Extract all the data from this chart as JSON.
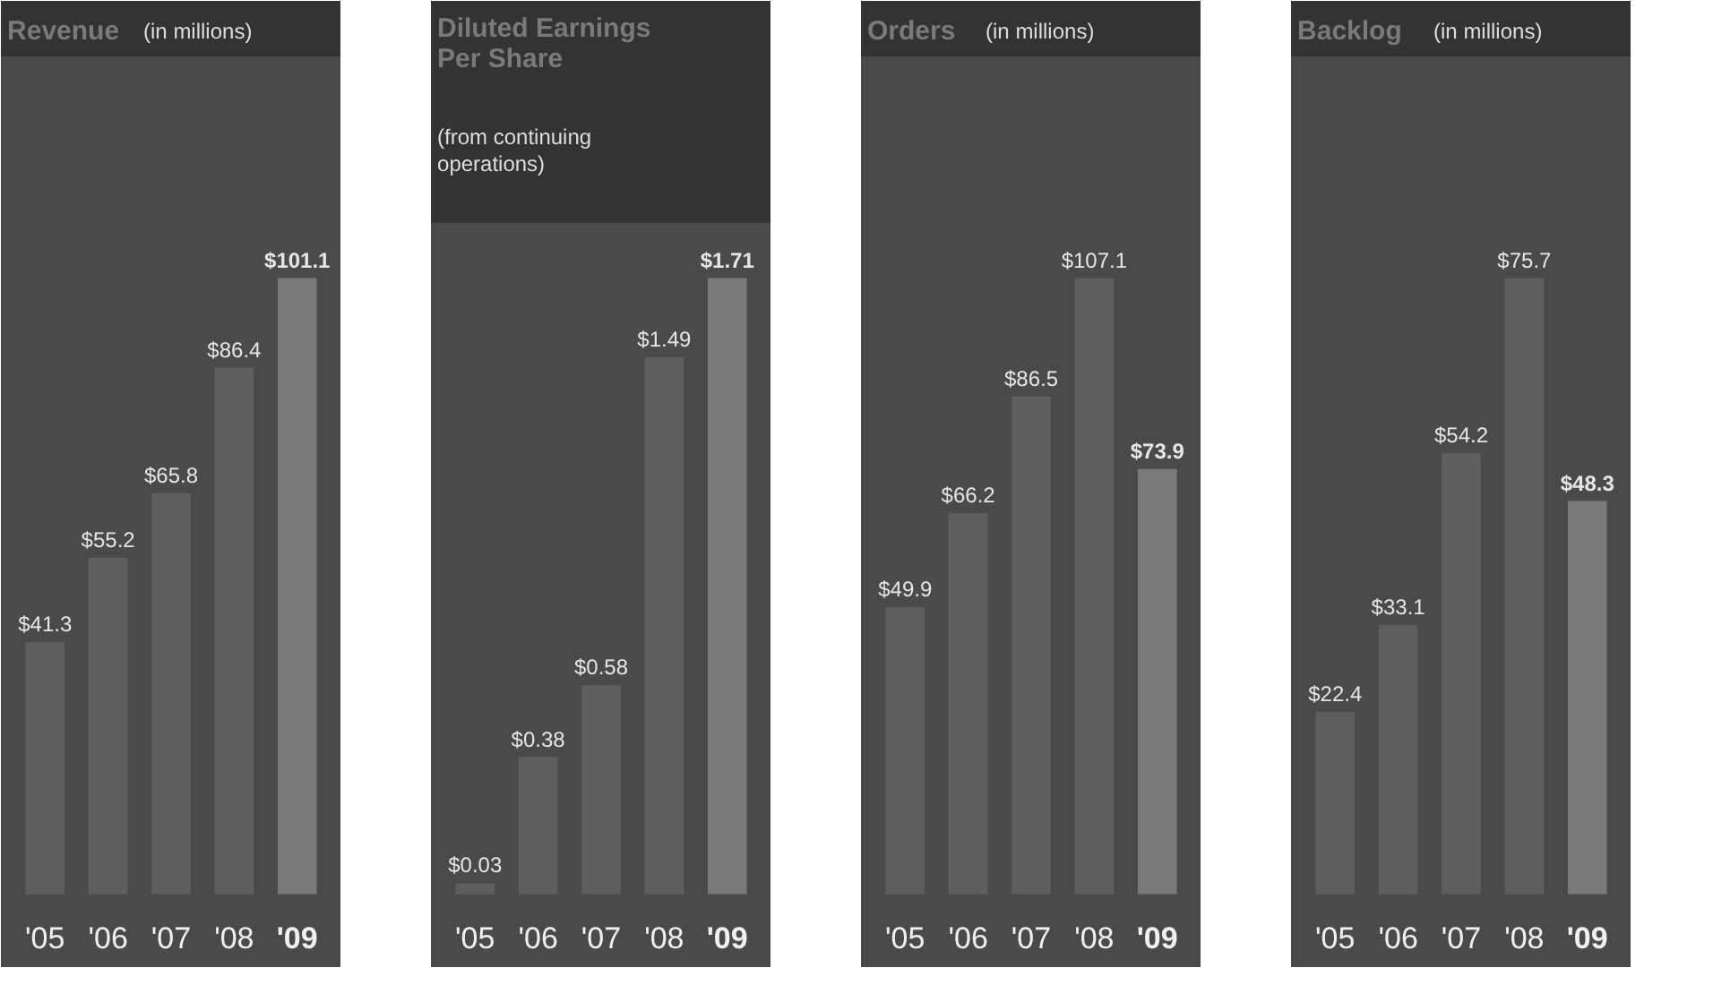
{
  "chart_data": [
    {
      "type": "bar",
      "title": "Revenue",
      "subtitle": "(in millions)",
      "categories": [
        "'05",
        "'06",
        "'07",
        "'08",
        "'09"
      ],
      "values": [
        41.3,
        55.2,
        65.8,
        86.4,
        101.1
      ],
      "value_labels": [
        "$41.3",
        "$55.2",
        "$65.8",
        "$86.4",
        "$101.1"
      ],
      "colors": [
        "#5e5e5e",
        "#5e5e5e",
        "#5e5e5e",
        "#5e5e5e",
        "#7a7a7a"
      ],
      "grid": false
    },
    {
      "type": "bar",
      "title": "Diluted Earnings Per Share",
      "subtitle": "(from continuing operations)",
      "categories": [
        "'05",
        "'06",
        "'07",
        "'08",
        "'09"
      ],
      "values": [
        0.03,
        0.38,
        0.58,
        1.49,
        1.71
      ],
      "value_labels": [
        "$0.03",
        "$0.38",
        "$0.58",
        "$1.49",
        "$1.71"
      ],
      "colors": [
        "#5e5e5e",
        "#5e5e5e",
        "#5e5e5e",
        "#5e5e5e",
        "#7a7a7a"
      ],
      "grid": false
    },
    {
      "type": "bar",
      "title": "Orders",
      "subtitle": "(in millions)",
      "categories": [
        "'05",
        "'06",
        "'07",
        "'08",
        "'09"
      ],
      "values": [
        49.9,
        66.2,
        86.5,
        107.1,
        73.9
      ],
      "value_labels": [
        "$49.9",
        "$66.2",
        "$86.5",
        "$107.1",
        "$73.9"
      ],
      "colors": [
        "#5e5e5e",
        "#5e5e5e",
        "#5e5e5e",
        "#5e5e5e",
        "#7a7a7a"
      ],
      "grid": false
    },
    {
      "type": "bar",
      "title": "Backlog",
      "subtitle": "(in millions)",
      "categories": [
        "'05",
        "'06",
        "'07",
        "'08",
        "'09"
      ],
      "values": [
        22.4,
        33.1,
        54.2,
        75.7,
        48.3
      ],
      "value_labels": [
        "$22.4",
        "$33.1",
        "$54.2",
        "$75.7",
        "$48.3"
      ],
      "colors": [
        "#5e5e5e",
        "#5e5e5e",
        "#5e5e5e",
        "#5e5e5e",
        "#7a7a7a"
      ],
      "grid": false
    }
  ]
}
